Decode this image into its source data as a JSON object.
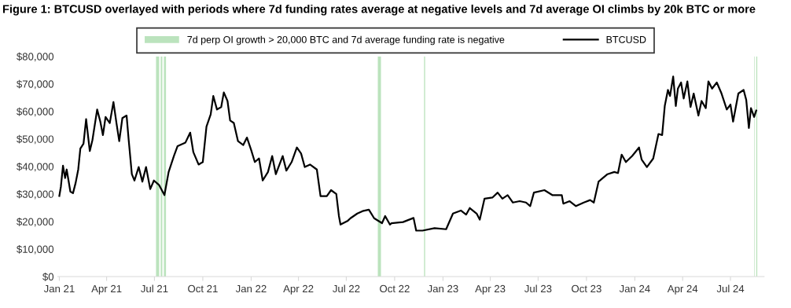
{
  "chart_data": {
    "type": "line",
    "title": "Figure 1: BTCUSD overlayed with periods where 7d funding rates average at negative levels and 7d average OI climbs by 20k BTC or more",
    "x": [
      "2021-01-01",
      "2021-01-04",
      "2021-01-08",
      "2021-01-12",
      "2021-01-15",
      "2021-01-22",
      "2021-01-27",
      "2021-02-01",
      "2021-02-06",
      "2021-02-10",
      "2021-02-16",
      "2021-02-21",
      "2021-02-28",
      "2021-03-05",
      "2021-03-14",
      "2021-03-20",
      "2021-03-25",
      "2021-03-30",
      "2021-04-07",
      "2021-04-14",
      "2021-04-20",
      "2021-04-25",
      "2021-05-01",
      "2021-05-09",
      "2021-05-13",
      "2021-05-19",
      "2021-05-24",
      "2021-06-01",
      "2021-06-08",
      "2021-06-15",
      "2021-06-23",
      "2021-06-30",
      "2021-07-10",
      "2021-07-20",
      "2021-07-28",
      "2021-08-07",
      "2021-08-14",
      "2021-08-29",
      "2021-09-07",
      "2021-09-13",
      "2021-09-23",
      "2021-10-01",
      "2021-10-08",
      "2021-10-16",
      "2021-10-21",
      "2021-10-28",
      "2021-11-05",
      "2021-11-10",
      "2021-11-17",
      "2021-11-22",
      "2021-11-29",
      "2021-12-07",
      "2021-12-17",
      "2021-12-24",
      "2022-01-01",
      "2022-01-08",
      "2022-01-16",
      "2022-01-23",
      "2022-02-02",
      "2022-02-10",
      "2022-02-17",
      "2022-03-02",
      "2022-03-09",
      "2022-03-19",
      "2022-03-29",
      "2022-04-06",
      "2022-04-13",
      "2022-04-23",
      "2022-05-06",
      "2022-05-13",
      "2022-05-25",
      "2022-06-02",
      "2022-06-12",
      "2022-06-17",
      "2022-06-20",
      "2022-07-04",
      "2022-07-09",
      "2022-07-22",
      "2022-08-01",
      "2022-08-13",
      "2022-08-23",
      "2022-09-07",
      "2022-09-13",
      "2022-09-22",
      "2022-09-25",
      "2022-10-17",
      "2022-11-06",
      "2022-11-11",
      "2022-11-23",
      "2022-12-16",
      "2023-01-07",
      "2023-01-20",
      "2023-02-04",
      "2023-02-14",
      "2023-02-21",
      "2023-03-06",
      "2023-03-12",
      "2023-03-21",
      "2023-04-05",
      "2023-04-15",
      "2023-04-24",
      "2023-05-04",
      "2023-05-14",
      "2023-05-27",
      "2023-06-08",
      "2023-06-16",
      "2023-06-23",
      "2023-07-13",
      "2023-07-28",
      "2023-08-15",
      "2023-08-18",
      "2023-08-30",
      "2023-09-11",
      "2023-09-26",
      "2023-10-08",
      "2023-10-15",
      "2023-10-24",
      "2023-11-10",
      "2023-11-23",
      "2023-11-30",
      "2023-12-07",
      "2023-12-15",
      "2023-12-27",
      "2024-01-09",
      "2024-01-14",
      "2024-01-24",
      "2024-02-05",
      "2024-02-15",
      "2024-02-22",
      "2024-02-27",
      "2024-03-04",
      "2024-03-08",
      "2024-03-14",
      "2024-03-19",
      "2024-03-23",
      "2024-03-29",
      "2024-04-03",
      "2024-04-10",
      "2024-04-16",
      "2024-04-22",
      "2024-05-01",
      "2024-05-07",
      "2024-05-15",
      "2024-05-20",
      "2024-05-27",
      "2024-06-05",
      "2024-06-14",
      "2024-06-24",
      "2024-07-01",
      "2024-07-06",
      "2024-07-16",
      "2024-07-26",
      "2024-07-31",
      "2024-08-05",
      "2024-08-09",
      "2024-08-15",
      "2024-08-19"
    ],
    "series": [
      {
        "name": "BTCUSD",
        "color": "#000000",
        "values": [
          29300,
          32700,
          40300,
          35800,
          38900,
          30900,
          30300,
          34000,
          38900,
          46500,
          48300,
          57200,
          45600,
          49600,
          60700,
          56300,
          51400,
          58000,
          55800,
          63400,
          55400,
          49200,
          57600,
          58500,
          49600,
          37200,
          34900,
          39800,
          34500,
          39800,
          31800,
          34900,
          33200,
          29600,
          38000,
          43800,
          47400,
          48700,
          52300,
          45200,
          40700,
          41600,
          54500,
          58900,
          65600,
          60700,
          61600,
          66900,
          63800,
          56700,
          55800,
          49200,
          47800,
          50500,
          46000,
          41600,
          42900,
          34900,
          38000,
          43800,
          37200,
          43800,
          38500,
          41600,
          46900,
          44700,
          39800,
          40700,
          38900,
          29200,
          29200,
          31400,
          30000,
          22000,
          18900,
          20300,
          21200,
          22900,
          23800,
          24300,
          21200,
          19400,
          22000,
          18900,
          19400,
          19800,
          21300,
          16700,
          16700,
          17600,
          17200,
          22900,
          24000,
          22500,
          24900,
          22900,
          20700,
          28300,
          28700,
          30500,
          28300,
          29600,
          26900,
          27400,
          26900,
          25600,
          30500,
          31400,
          29600,
          29600,
          26500,
          27400,
          25600,
          26900,
          27800,
          26900,
          34500,
          37200,
          38000,
          37600,
          44300,
          41600,
          43800,
          46900,
          42500,
          39800,
          42900,
          51800,
          51400,
          62000,
          67800,
          65600,
          72700,
          62000,
          68300,
          70500,
          64700,
          70900,
          61600,
          66500,
          58500,
          63800,
          61200,
          70900,
          68300,
          70500,
          66500,
          60700,
          62500,
          56300,
          66500,
          67800,
          64200,
          54000,
          61200,
          58000,
          60300
        ]
      }
    ],
    "bands": [
      {
        "axis": "x",
        "from": "2021-07-04",
        "to": "2021-07-10",
        "color": "#3cb043",
        "label": "7d perp OI growth > 20,000 BTC and 7d average funding rate is negative"
      },
      {
        "axis": "x",
        "from": "2021-07-13",
        "to": "2021-07-16",
        "color": "#3cb043"
      },
      {
        "axis": "x",
        "from": "2021-07-19",
        "to": "2021-07-23",
        "color": "#3cb043"
      },
      {
        "axis": "x",
        "from": "2022-08-30",
        "to": "2022-09-05",
        "color": "#3cb043"
      },
      {
        "axis": "x",
        "from": "2022-11-26",
        "to": "2022-11-28",
        "color": "#3cb043"
      },
      {
        "axis": "x",
        "from": "2024-08-15",
        "to": "2024-08-16",
        "color": "#3cb043"
      },
      {
        "axis": "x",
        "from": "2024-08-19",
        "to": "2024-08-21",
        "color": "#3cb043"
      }
    ],
    "xlim": [
      "2020-12-29",
      "2024-09-03"
    ],
    "xticks": [
      {
        "value": "2021-01-01",
        "label": "Jan 21"
      },
      {
        "value": "2021-04-01",
        "label": "Apr 21"
      },
      {
        "value": "2021-07-01",
        "label": "Jul 21"
      },
      {
        "value": "2021-10-01",
        "label": "Oct 21"
      },
      {
        "value": "2022-01-01",
        "label": "Jan 22"
      },
      {
        "value": "2022-04-01",
        "label": "Apr 22"
      },
      {
        "value": "2022-07-01",
        "label": "Jul 22"
      },
      {
        "value": "2022-10-01",
        "label": "Oct 22"
      },
      {
        "value": "2023-01-01",
        "label": "Jan 23"
      },
      {
        "value": "2023-04-01",
        "label": "Apr 23"
      },
      {
        "value": "2023-07-01",
        "label": "Jul 23"
      },
      {
        "value": "2023-10-01",
        "label": "Oct 23"
      },
      {
        "value": "2024-01-01",
        "label": "Jan 24"
      },
      {
        "value": "2024-04-01",
        "label": "Apr 24"
      },
      {
        "value": "2024-07-01",
        "label": "Jul 24"
      }
    ],
    "ylim": [
      0,
      80000
    ],
    "yticks": [
      {
        "value": 0,
        "label": "$0"
      },
      {
        "value": 10000,
        "label": "$10,000"
      },
      {
        "value": 20000,
        "label": "$20,000"
      },
      {
        "value": 30000,
        "label": "$30,000"
      },
      {
        "value": 40000,
        "label": "$40,000"
      },
      {
        "value": 50000,
        "label": "$50,000"
      },
      {
        "value": 60000,
        "label": "$60,000"
      },
      {
        "value": 70000,
        "label": "$70,000"
      },
      {
        "value": 80000,
        "label": "$80,000"
      }
    ],
    "grid": false,
    "legend": "top",
    "marker": "none",
    "line_style": "solid"
  }
}
